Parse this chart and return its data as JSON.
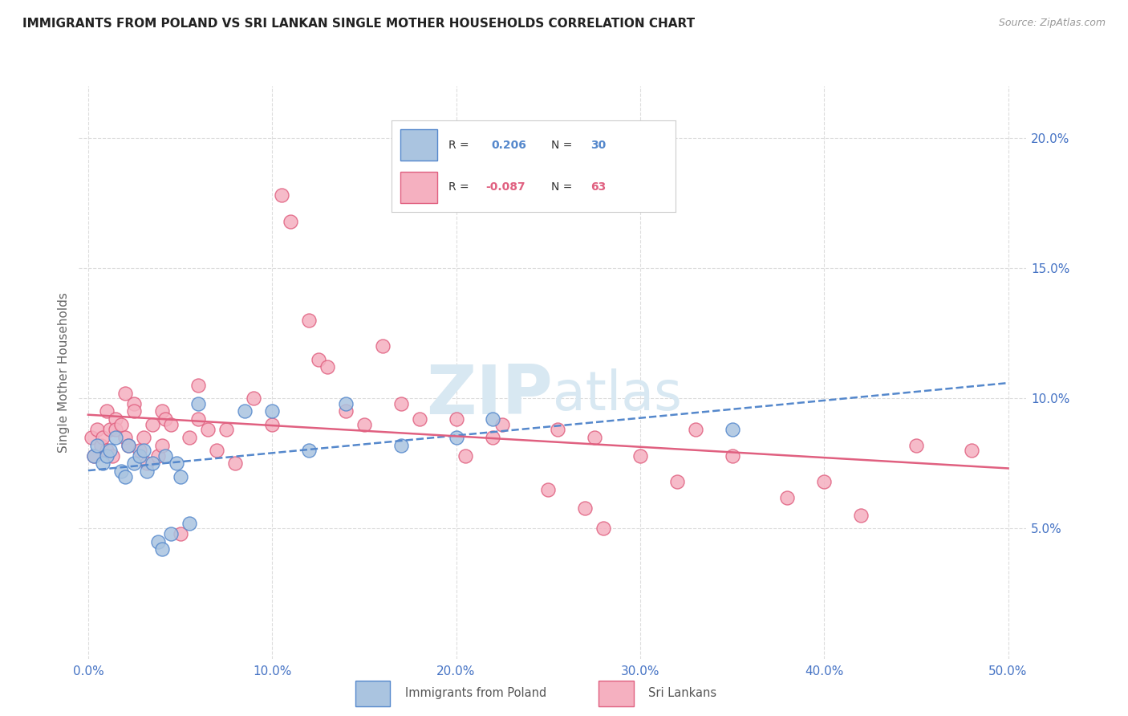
{
  "title": "IMMIGRANTS FROM POLAND VS SRI LANKAN SINGLE MOTHER HOUSEHOLDS CORRELATION CHART",
  "source": "Source: ZipAtlas.com",
  "ylabel": "Single Mother Households",
  "xlabel_ticks": [
    "0.0%",
    "10.0%",
    "20.0%",
    "30.0%",
    "40.0%",
    "50.0%"
  ],
  "xlabel_vals": [
    0,
    10,
    20,
    30,
    40,
    50
  ],
  "ylabel_ticks": [
    "5.0%",
    "10.0%",
    "15.0%",
    "20.0%"
  ],
  "ylabel_vals": [
    5,
    10,
    15,
    20
  ],
  "xlim": [
    -0.5,
    51
  ],
  "ylim": [
    0,
    22
  ],
  "poland_color": "#aac4e0",
  "srilanka_color": "#f5b0c0",
  "poland_line_color": "#5588cc",
  "srilanka_line_color": "#e06080",
  "poland_scatter": [
    [
      0.3,
      7.8
    ],
    [
      0.5,
      8.2
    ],
    [
      0.8,
      7.5
    ],
    [
      1.0,
      7.8
    ],
    [
      1.2,
      8.0
    ],
    [
      1.5,
      8.5
    ],
    [
      1.8,
      7.2
    ],
    [
      2.0,
      7.0
    ],
    [
      2.2,
      8.2
    ],
    [
      2.5,
      7.5
    ],
    [
      2.8,
      7.8
    ],
    [
      3.0,
      8.0
    ],
    [
      3.2,
      7.2
    ],
    [
      3.5,
      7.5
    ],
    [
      3.8,
      4.5
    ],
    [
      4.0,
      4.2
    ],
    [
      4.2,
      7.8
    ],
    [
      4.5,
      4.8
    ],
    [
      4.8,
      7.5
    ],
    [
      5.0,
      7.0
    ],
    [
      5.5,
      5.2
    ],
    [
      6.0,
      9.8
    ],
    [
      8.5,
      9.5
    ],
    [
      10.0,
      9.5
    ],
    [
      12.0,
      8.0
    ],
    [
      14.0,
      9.8
    ],
    [
      17.0,
      8.2
    ],
    [
      20.0,
      8.5
    ],
    [
      22.0,
      9.2
    ],
    [
      35.0,
      8.8
    ]
  ],
  "srilanka_scatter": [
    [
      0.2,
      8.5
    ],
    [
      0.3,
      7.8
    ],
    [
      0.5,
      8.8
    ],
    [
      0.7,
      8.2
    ],
    [
      0.8,
      8.5
    ],
    [
      1.0,
      9.5
    ],
    [
      1.0,
      8.0
    ],
    [
      1.2,
      8.8
    ],
    [
      1.3,
      7.8
    ],
    [
      1.5,
      9.2
    ],
    [
      1.5,
      8.8
    ],
    [
      1.8,
      9.0
    ],
    [
      2.0,
      8.5
    ],
    [
      2.0,
      10.2
    ],
    [
      2.2,
      8.2
    ],
    [
      2.5,
      9.8
    ],
    [
      2.5,
      9.5
    ],
    [
      2.8,
      8.0
    ],
    [
      3.0,
      8.5
    ],
    [
      3.2,
      7.5
    ],
    [
      3.5,
      9.0
    ],
    [
      3.8,
      7.8
    ],
    [
      4.0,
      8.2
    ],
    [
      4.0,
      9.5
    ],
    [
      4.2,
      9.2
    ],
    [
      4.5,
      9.0
    ],
    [
      5.0,
      4.8
    ],
    [
      5.5,
      8.5
    ],
    [
      6.0,
      9.2
    ],
    [
      6.0,
      10.5
    ],
    [
      6.5,
      8.8
    ],
    [
      7.0,
      8.0
    ],
    [
      7.5,
      8.8
    ],
    [
      8.0,
      7.5
    ],
    [
      9.0,
      10.0
    ],
    [
      10.0,
      9.0
    ],
    [
      10.5,
      17.8
    ],
    [
      11.0,
      16.8
    ],
    [
      12.0,
      13.0
    ],
    [
      12.5,
      11.5
    ],
    [
      13.0,
      11.2
    ],
    [
      14.0,
      9.5
    ],
    [
      15.0,
      9.0
    ],
    [
      16.0,
      12.0
    ],
    [
      17.0,
      9.8
    ],
    [
      18.0,
      9.2
    ],
    [
      20.0,
      9.2
    ],
    [
      20.5,
      7.8
    ],
    [
      22.0,
      8.5
    ],
    [
      22.5,
      9.0
    ],
    [
      25.0,
      6.5
    ],
    [
      25.5,
      8.8
    ],
    [
      27.0,
      5.8
    ],
    [
      27.5,
      8.5
    ],
    [
      28.0,
      5.0
    ],
    [
      30.0,
      7.8
    ],
    [
      32.0,
      6.8
    ],
    [
      33.0,
      8.8
    ],
    [
      35.0,
      7.8
    ],
    [
      38.0,
      6.2
    ],
    [
      40.0,
      6.8
    ],
    [
      42.0,
      5.5
    ],
    [
      45.0,
      8.2
    ],
    [
      48.0,
      8.0
    ]
  ],
  "background_color": "#ffffff",
  "grid_color": "#dddddd",
  "tick_color": "#4472c4",
  "watermark_line1": "ZIP",
  "watermark_line2": "atlas",
  "watermark_color": "#d8e8f2"
}
